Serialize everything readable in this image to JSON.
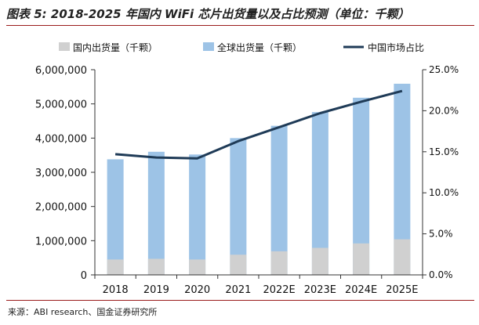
{
  "header": {
    "title": "图表 5: 2018-2025 年国内 WiFi 芯片出货量以及占比预测（单位：千颗）"
  },
  "footer": {
    "source": "来源：ABI research、国金证券研究所"
  },
  "chart_data": {
    "type": "bar",
    "title": "图表 5: 2018-2025 年国内 WiFi 芯片出货量以及占比预测（单位：千颗）",
    "categories": [
      "2018",
      "2019",
      "2020",
      "2021",
      "2022E",
      "2023E",
      "2024E",
      "2025E"
    ],
    "series": [
      {
        "name": "国内出货量（千颗）",
        "type": "bar",
        "axis": "left",
        "color": "#d0d0d0",
        "values": [
          450000,
          470000,
          450000,
          590000,
          690000,
          790000,
          920000,
          1040000
        ]
      },
      {
        "name": "全球出货量（千颗）",
        "type": "bar",
        "axis": "left",
        "color": "#9dc3e6",
        "values": [
          3380000,
          3600000,
          3520000,
          4000000,
          4360000,
          4760000,
          5180000,
          5590000
        ]
      },
      {
        "name": "中国市场占比",
        "type": "line",
        "axis": "right",
        "color": "#1f3b57",
        "values": [
          14.7,
          14.3,
          14.2,
          16.3,
          18.0,
          19.7,
          21.1,
          22.4
        ]
      }
    ],
    "y_left": {
      "min": 0,
      "max": 6000000,
      "ticks": [
        0,
        1000000,
        2000000,
        3000000,
        4000000,
        5000000,
        6000000
      ],
      "tick_labels": [
        "0",
        "1,000,000",
        "2,000,000",
        "3,000,000",
        "4,000,000",
        "5,000,000",
        "6,000,000"
      ]
    },
    "y_right": {
      "min": 0,
      "max": 25,
      "ticks": [
        0,
        5,
        10,
        15,
        20,
        25
      ],
      "tick_labels": [
        "0.0%",
        "5.0%",
        "10.0%",
        "15.0%",
        "20.0%",
        "25.0%"
      ]
    },
    "legend_position": "top",
    "grid": false
  }
}
